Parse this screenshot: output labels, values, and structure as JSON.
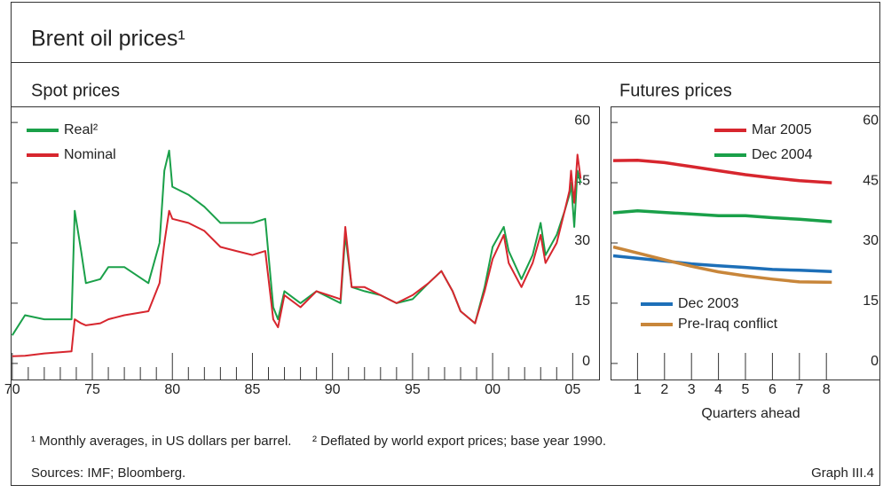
{
  "title": "Brent oil prices¹",
  "footnotes": [
    "¹ Monthly averages, in US dollars per barrel.",
    "² Deflated by world export prices; base year 1990."
  ],
  "sources": "Sources: IMF; Bloomberg.",
  "graph_label": "Graph III.4",
  "chart_data": [
    {
      "type": "line",
      "title": "Spot prices",
      "x": [
        1970,
        1970.8,
        1972,
        1973.7,
        1973.9,
        1974.3,
        1974.6,
        1975.5,
        1976,
        1977,
        1978.5,
        1979.2,
        1979.5,
        1979.8,
        1980,
        1981,
        1982,
        1983,
        1984,
        1985,
        1985.8,
        1986.3,
        1986.6,
        1987,
        1988,
        1989,
        1990.5,
        1990.8,
        1991.2,
        1992,
        1993,
        1994,
        1995,
        1996,
        1996.8,
        1997.5,
        1998,
        1998.9,
        1999.5,
        2000,
        2000.7,
        2001,
        2001.8,
        2002.5,
        2003,
        2003.3,
        2004,
        2004.5,
        2004.8,
        2004.9,
        2005.1,
        2005.3,
        2005.5
      ],
      "series": [
        {
          "name": "Real²",
          "color": "#1aa049",
          "values": [
            7,
            12,
            11,
            11,
            38,
            28,
            20,
            21,
            24,
            24,
            20,
            30,
            48,
            53,
            44,
            42,
            39,
            35,
            35,
            35,
            36,
            14,
            11,
            18,
            15,
            18,
            15,
            32,
            19,
            18,
            17,
            15,
            16,
            20,
            23,
            18,
            13,
            10,
            19,
            29,
            34,
            28,
            21,
            27,
            35,
            27,
            32,
            38,
            42,
            45,
            34,
            48,
            45
          ]
        },
        {
          "name": "Nominal",
          "color": "#d7262e",
          "values": [
            1.8,
            1.9,
            2.5,
            3,
            11,
            10,
            9.5,
            10,
            11,
            12,
            13,
            20,
            30,
            38,
            36,
            35,
            33,
            29,
            28,
            27,
            28,
            11,
            9,
            17,
            14,
            18,
            16,
            34,
            19,
            19,
            17,
            15,
            17,
            20,
            23,
            18,
            13,
            10,
            18,
            26,
            32,
            25,
            19,
            25,
            32,
            25,
            30,
            38,
            43,
            48,
            40,
            52,
            46
          ]
        }
      ],
      "xlim": [
        1969.9,
        2006.7
      ],
      "xticks": [
        {
          "value": 1970,
          "label": "70"
        },
        {
          "value": 1975,
          "label": "75"
        },
        {
          "value": 1980,
          "label": "80"
        },
        {
          "value": 1985,
          "label": "85"
        },
        {
          "value": 1990,
          "label": "90"
        },
        {
          "value": 1995,
          "label": "95"
        },
        {
          "value": 2000,
          "label": "00"
        },
        {
          "value": 2005,
          "label": "05"
        }
      ],
      "xminorticks": [
        1971,
        1972,
        1973,
        1974,
        1976,
        1977,
        1978,
        1979,
        1981,
        1982,
        1983,
        1984,
        1986,
        1987,
        1988,
        1989,
        1991,
        1992,
        1993,
        1994,
        1996,
        1997,
        1998,
        1999,
        2001,
        2002,
        2003,
        2004
      ],
      "ylim": [
        -4,
        64
      ],
      "yticks": [
        0,
        15,
        30,
        45,
        60
      ]
    },
    {
      "type": "line",
      "title": "Futures prices",
      "xlabel": "Quarters ahead",
      "x": [
        0.1,
        1,
        2,
        3,
        4,
        5,
        6,
        7,
        8.2
      ],
      "series": [
        {
          "name": "Mar 2005",
          "color": "#d7262e",
          "values": [
            50.5,
            50.6,
            50,
            49,
            48,
            47,
            46.2,
            45.5,
            45
          ]
        },
        {
          "name": "Dec 2004",
          "color": "#1aa049",
          "values": [
            37.5,
            38,
            37.6,
            37.2,
            36.8,
            36.8,
            36.3,
            35.9,
            35.3
          ]
        },
        {
          "name": "Dec 2003",
          "color": "#1d6fb8",
          "values": [
            26.8,
            26.2,
            25.5,
            24.8,
            24.3,
            23.9,
            23.4,
            23.2,
            22.9
          ]
        },
        {
          "name": "Pre-Iraq conflict",
          "color": "#c8863a",
          "values": [
            29,
            27.5,
            25.8,
            24.2,
            22.8,
            21.8,
            21,
            20.3,
            20.2
          ]
        }
      ],
      "xlim": [
        0,
        10
      ],
      "xticks": [
        1,
        2,
        3,
        4,
        5,
        6,
        7,
        8
      ],
      "ylim": [
        -4,
        64
      ],
      "yticks": [
        0,
        15,
        30,
        45,
        60
      ]
    }
  ]
}
